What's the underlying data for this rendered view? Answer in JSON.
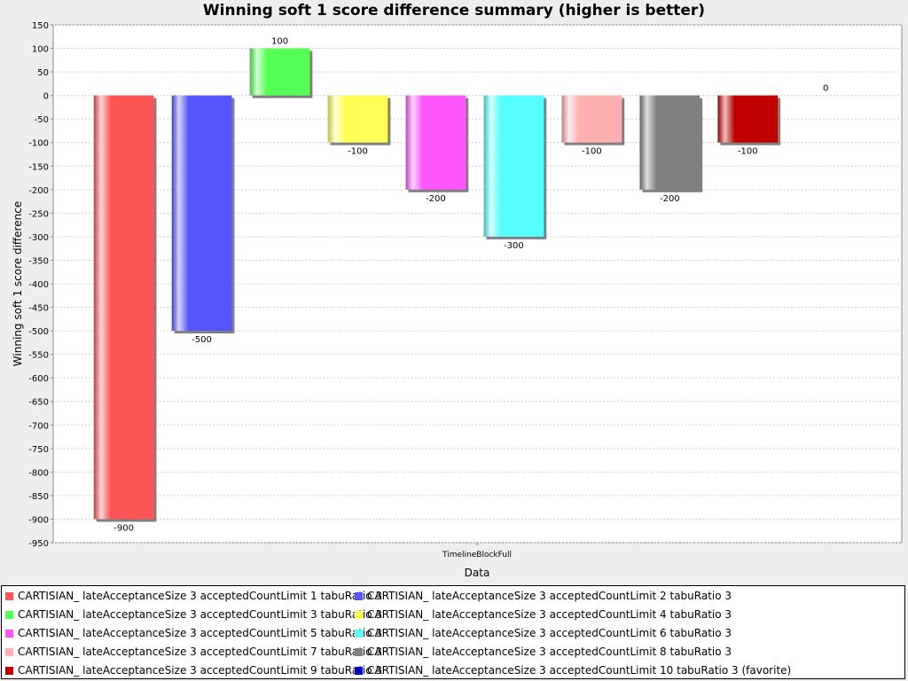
{
  "chart_data": {
    "type": "bar",
    "title": "Winning soft 1 score difference summary (higher is better)",
    "xlabel": "Data",
    "ylabel": "Winning soft 1 score difference",
    "categories": [
      "TimelineBlockFull"
    ],
    "ylim": [
      -950,
      150
    ],
    "ytick_step": 50,
    "grid": true,
    "legend_position": "bottom",
    "series": [
      {
        "name": "CARTISIAN_ lateAcceptanceSize 3 acceptedCountLimit 1 tabuRatio 3",
        "values": [
          -900
        ],
        "color": "#ff5555"
      },
      {
        "name": "CARTISIAN_ lateAcceptanceSize 3 acceptedCountLimit 2 tabuRatio 3",
        "values": [
          -500
        ],
        "color": "#5555ff"
      },
      {
        "name": "CARTISIAN_ lateAcceptanceSize 3 acceptedCountLimit 3 tabuRatio 3",
        "values": [
          100
        ],
        "color": "#55ff55"
      },
      {
        "name": "CARTISIAN_ lateAcceptanceSize 3 acceptedCountLimit 4 tabuRatio 3",
        "values": [
          -100
        ],
        "color": "#ffff55"
      },
      {
        "name": "CARTISIAN_ lateAcceptanceSize 3 acceptedCountLimit 5 tabuRatio 3",
        "values": [
          -200
        ],
        "color": "#ff55ff"
      },
      {
        "name": "CARTISIAN_ lateAcceptanceSize 3 acceptedCountLimit 6 tabuRatio 3",
        "values": [
          -300
        ],
        "color": "#55ffff"
      },
      {
        "name": "CARTISIAN_ lateAcceptanceSize 3 acceptedCountLimit 7 tabuRatio 3",
        "values": [
          -100
        ],
        "color": "#ffafaf"
      },
      {
        "name": "CARTISIAN_ lateAcceptanceSize 3 acceptedCountLimit 8 tabuRatio 3",
        "values": [
          -200
        ],
        "color": "#808080"
      },
      {
        "name": "CARTISIAN_ lateAcceptanceSize 3 acceptedCountLimit 9 tabuRatio 3",
        "values": [
          -100
        ],
        "color": "#c00000"
      },
      {
        "name": "CARTISIAN_ lateAcceptanceSize 3 acceptedCountLimit 10 tabuRatio 3 (favorite)",
        "values": [
          0
        ],
        "color": "#0000c0"
      }
    ]
  }
}
